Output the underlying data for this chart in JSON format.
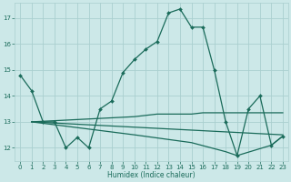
{
  "xlabel": "Humidex (Indice chaleur)",
  "bg_color": "#cce8e8",
  "grid_color": "#aacfcf",
  "line_color": "#1a6b5a",
  "xlim": [
    -0.5,
    23.5
  ],
  "ylim": [
    11.5,
    17.6
  ],
  "yticks": [
    12,
    13,
    14,
    15,
    16,
    17
  ],
  "xticks": [
    0,
    1,
    2,
    3,
    4,
    5,
    6,
    7,
    8,
    9,
    10,
    11,
    12,
    13,
    14,
    15,
    16,
    17,
    18,
    19,
    20,
    21,
    22,
    23
  ],
  "lines": [
    {
      "x": [
        0,
        1,
        2,
        3,
        4,
        5,
        6,
        7,
        8,
        9,
        10,
        11,
        12,
        13,
        14,
        15,
        16,
        17,
        18,
        19,
        20,
        21,
        22,
        23
      ],
      "y": [
        14.8,
        14.2,
        13.0,
        13.0,
        12.0,
        12.4,
        12.0,
        13.5,
        13.8,
        14.9,
        15.4,
        15.8,
        16.1,
        17.2,
        17.35,
        16.65,
        16.65,
        15.0,
        13.0,
        11.7,
        13.5,
        14.0,
        12.1,
        12.45
      ],
      "has_markers": true
    },
    {
      "x": [
        1,
        10,
        11,
        12,
        13,
        14,
        15,
        16,
        17,
        18,
        22,
        23
      ],
      "y": [
        13.0,
        13.2,
        13.25,
        13.3,
        13.3,
        13.3,
        13.3,
        13.35,
        13.35,
        13.35,
        13.35,
        13.35
      ],
      "has_markers": false
    },
    {
      "x": [
        1,
        23
      ],
      "y": [
        13.0,
        12.5
      ],
      "has_markers": false
    },
    {
      "x": [
        1,
        10,
        15,
        18,
        19,
        22,
        23
      ],
      "y": [
        13.0,
        12.5,
        12.2,
        11.85,
        11.7,
        12.1,
        12.45
      ],
      "has_markers": false
    }
  ]
}
